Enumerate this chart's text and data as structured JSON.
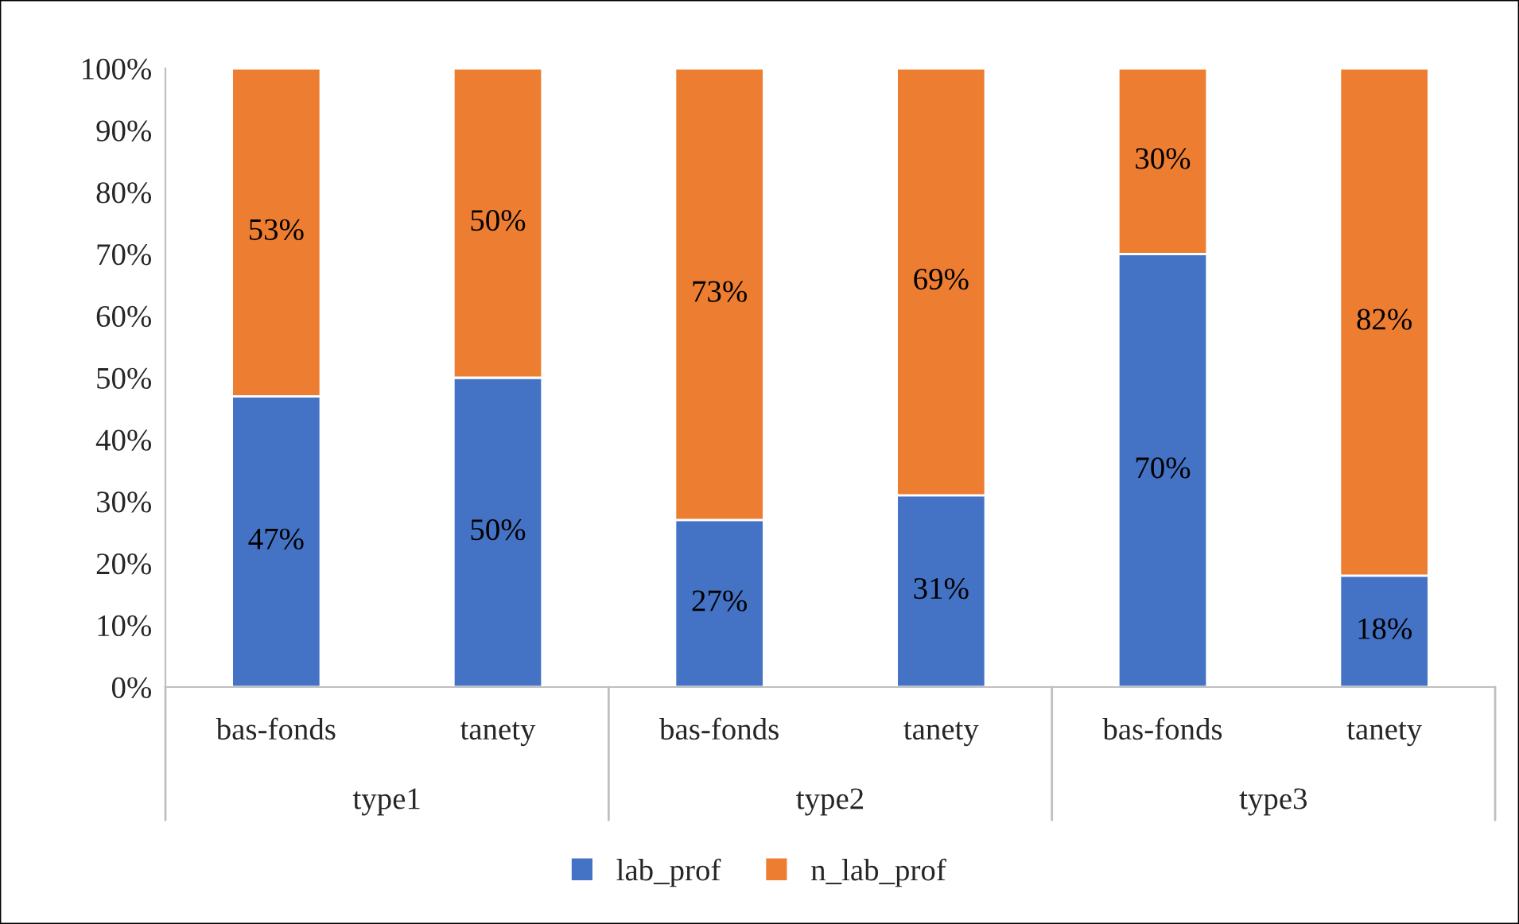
{
  "chart_data": {
    "type": "bar",
    "stacked": true,
    "categories": [
      "bas-fonds",
      "tanety",
      "bas-fonds",
      "tanety",
      "bas-fonds",
      "tanety"
    ],
    "annotations": [
      "type1",
      "type2",
      "type3"
    ],
    "series": [
      {
        "name": "lab_prof",
        "color": "#4472c4",
        "values": [
          47,
          50,
          27,
          31,
          70,
          18
        ],
        "value_labels": [
          "47%",
          "50%",
          "27%",
          "31%",
          "70%",
          "18%"
        ]
      },
      {
        "name": "n_lab_prof",
        "color": "#ed7d31",
        "values": [
          53,
          50,
          73,
          69,
          30,
          82
        ],
        "value_labels": [
          "53%",
          "50%",
          "73%",
          "69%",
          "30%",
          "82%"
        ]
      }
    ],
    "ylim": [
      0,
      100
    ],
    "yticks": [
      {
        "value": 0,
        "label": "0%"
      },
      {
        "value": 10,
        "label": "10%"
      },
      {
        "value": 20,
        "label": "20%"
      },
      {
        "value": 30,
        "label": "30%"
      },
      {
        "value": 40,
        "label": "40%"
      },
      {
        "value": 50,
        "label": "50%"
      },
      {
        "value": 60,
        "label": "60%"
      },
      {
        "value": 70,
        "label": "70%"
      },
      {
        "value": 80,
        "label": "80%"
      },
      {
        "value": 90,
        "label": "90%"
      },
      {
        "value": 100,
        "label": "100%"
      }
    ],
    "grid": false,
    "legend": "bottom"
  }
}
